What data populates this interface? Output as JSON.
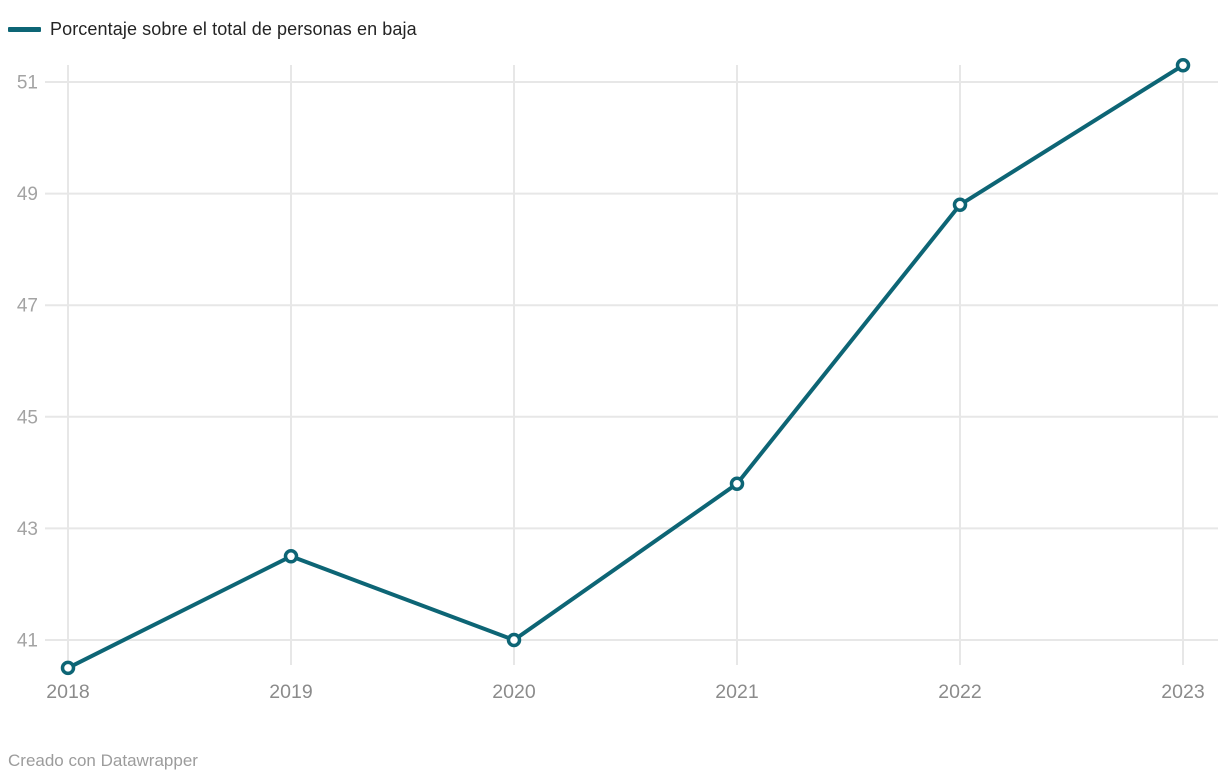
{
  "legend": {
    "label": "Porcentaje sobre el total de personas en baja"
  },
  "footer": {
    "credit": "Creado con Datawrapper"
  },
  "colors": {
    "background": "#ffffff",
    "line": "#0d6575",
    "marker_fill": "#ffffff",
    "grid": "#e7e7e7",
    "y_label": "#a3a3a3",
    "x_label": "#8b8b8b",
    "legend_text": "#242424",
    "footer_text": "#9c9c9c"
  },
  "chart_data": {
    "type": "line",
    "title": "",
    "xlabel": "",
    "ylabel": "",
    "categories": [
      "2018",
      "2019",
      "2020",
      "2021",
      "2022",
      "2023"
    ],
    "series": [
      {
        "name": "Porcentaje sobre el total de personas en baja",
        "values": [
          40.5,
          42.5,
          41.0,
          43.8,
          48.8,
          51.3
        ]
      }
    ],
    "yticks": [
      41,
      43,
      45,
      47,
      49,
      51
    ],
    "ylim": [
      40.2,
      51.6
    ],
    "grid": true,
    "legend_position": "top-left",
    "marker": "open-circle",
    "line_width": 4
  }
}
